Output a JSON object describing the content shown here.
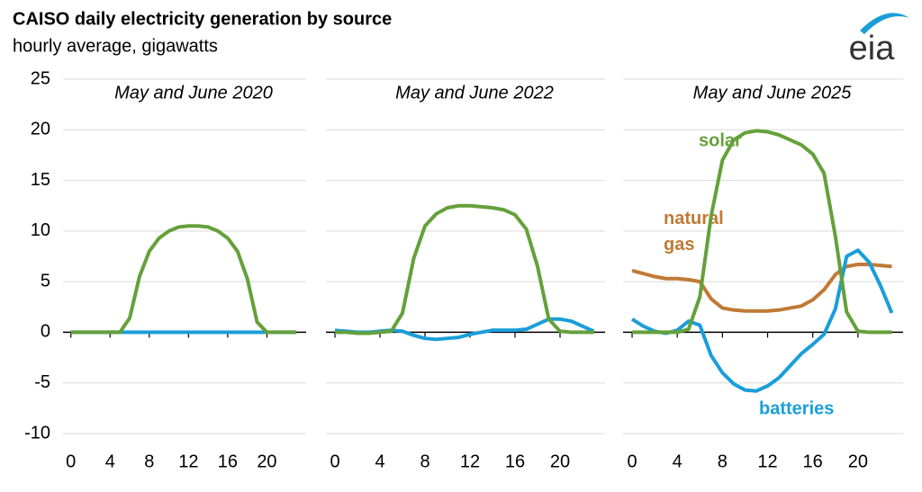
{
  "header": {
    "title": "CAISO daily electricity generation by source",
    "subtitle": "hourly average, gigawatts",
    "logo": "eia"
  },
  "chart_data": [
    {
      "type": "line",
      "title": "May and June 2020",
      "x": [
        0,
        1,
        2,
        3,
        4,
        5,
        6,
        7,
        8,
        9,
        10,
        11,
        12,
        13,
        14,
        15,
        16,
        17,
        18,
        19,
        20,
        21,
        22,
        23
      ],
      "xlim": [
        -0.8,
        24
      ],
      "xticks": [
        0,
        4,
        8,
        12,
        16,
        20
      ],
      "ylim": [
        -10,
        25
      ],
      "yticks": [
        -10,
        -5,
        0,
        5,
        10,
        15,
        20,
        25
      ],
      "grid": true,
      "series": [
        {
          "color": "#1a9ed9",
          "values": [
            0,
            0,
            0,
            0,
            0,
            0,
            0,
            0,
            0,
            0,
            0,
            0,
            0,
            0,
            0,
            0,
            0,
            0,
            0,
            0,
            0,
            0,
            0,
            0
          ]
        },
        {
          "color": "#65a03a",
          "values": [
            0,
            0,
            0,
            0,
            0,
            0,
            1.4,
            5.5,
            8,
            9.3,
            10,
            10.4,
            10.5,
            10.5,
            10.4,
            10,
            9.3,
            8,
            5.3,
            1,
            0,
            0,
            0,
            0
          ]
        }
      ]
    },
    {
      "type": "line",
      "title": "May and June 2022",
      "x": [
        0,
        1,
        2,
        3,
        4,
        5,
        6,
        7,
        8,
        9,
        10,
        11,
        12,
        13,
        14,
        15,
        16,
        17,
        18,
        19,
        20,
        21,
        22,
        23
      ],
      "xlim": [
        -0.8,
        24
      ],
      "xticks": [
        0,
        4,
        8,
        12,
        16,
        20
      ],
      "ylim": [
        -10,
        25
      ],
      "yticks": [
        -10,
        -5,
        0,
        5,
        10,
        15,
        20,
        25
      ],
      "grid": true,
      "series": [
        {
          "color": "#1a9ed9",
          "values": [
            0.2,
            0.1,
            0,
            0,
            0.1,
            0.2,
            0.1,
            -0.3,
            -0.6,
            -0.7,
            -0.6,
            -0.5,
            -0.2,
            0,
            0.2,
            0.2,
            0.2,
            0.3,
            0.8,
            1.3,
            1.3,
            1.1,
            0.6,
            0.1
          ]
        },
        {
          "color": "#65a03a",
          "values": [
            0,
            0,
            -0.1,
            -0.1,
            0,
            0.1,
            1.9,
            7.3,
            10.5,
            11.7,
            12.3,
            12.5,
            12.5,
            12.4,
            12.3,
            12.1,
            11.6,
            10.2,
            6.5,
            1.3,
            0.1,
            0,
            0,
            0
          ]
        }
      ]
    },
    {
      "type": "line",
      "title": "May and June 2025",
      "x": [
        0,
        1,
        2,
        3,
        4,
        5,
        6,
        7,
        8,
        9,
        10,
        11,
        12,
        13,
        14,
        15,
        16,
        17,
        18,
        19,
        20,
        21,
        22,
        23
      ],
      "xlim": [
        -0.8,
        24
      ],
      "xticks": [
        0,
        4,
        8,
        12,
        16,
        20
      ],
      "ylim": [
        -10,
        25
      ],
      "yticks": [
        -10,
        -5,
        0,
        5,
        10,
        15,
        20,
        25
      ],
      "grid": true,
      "series": [
        {
          "name": "natural gas",
          "color": "#c07a35",
          "values": [
            6.1,
            5.8,
            5.5,
            5.3,
            5.3,
            5.2,
            5,
            3.3,
            2.4,
            2.2,
            2.1,
            2.1,
            2.1,
            2.2,
            2.4,
            2.6,
            3.2,
            4.2,
            5.7,
            6.5,
            6.7,
            6.7,
            6.6,
            6.5
          ]
        },
        {
          "name": "batteries",
          "color": "#1a9ed9",
          "values": [
            1.3,
            0.6,
            0.1,
            -0.1,
            0.2,
            1.1,
            0.7,
            -2.3,
            -4,
            -5.1,
            -5.7,
            -5.8,
            -5.3,
            -4.5,
            -3.3,
            -2.1,
            -1.2,
            -0.2,
            2.3,
            7.5,
            8.1,
            6.9,
            4.6,
            1.9
          ]
        },
        {
          "name": "solar",
          "color": "#65a03a",
          "values": [
            0,
            0,
            0,
            0,
            0,
            0.3,
            3.5,
            11.5,
            17,
            19,
            19.7,
            19.9,
            19.8,
            19.5,
            19,
            18.5,
            17.6,
            15.7,
            9.5,
            2,
            0.1,
            0,
            0,
            0
          ]
        }
      ]
    }
  ]
}
